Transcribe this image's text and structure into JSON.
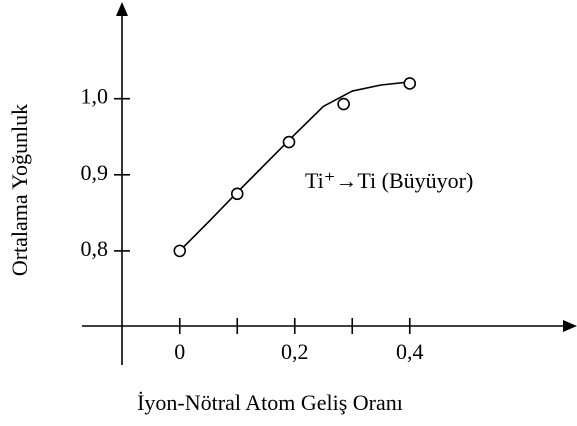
{
  "chart_data": {
    "type": "scatter",
    "xlabel": "İyon-Nötral Atom Geliş Oranı",
    "ylabel": "Ortalama Yoğunluk",
    "annotation": "Ti⁺→Ti (Büyüyor)",
    "x": [
      0,
      0.1,
      0.19,
      0.285,
      0.4
    ],
    "values": [
      0.8,
      0.875,
      0.943,
      0.993,
      1.02
    ],
    "fit": {
      "x": [
        0,
        0.05,
        0.1,
        0.15,
        0.2,
        0.25,
        0.3,
        0.35,
        0.4
      ],
      "values": [
        0.8,
        0.838,
        0.877,
        0.915,
        0.953,
        0.99,
        1.01,
        1.018,
        1.022
      ]
    },
    "color": "#000000",
    "xlim": [
      -0.17,
      0.67
    ],
    "ylim": [
      0.65,
      1.11
    ],
    "xticks": [
      0,
      {
        "value": 0.2,
        "label": "0,2"
      },
      {
        "value": 0.4,
        "label": "0,4"
      }
    ],
    "xminorticks": [
      0.1,
      0.3
    ],
    "yticks": [
      {
        "value": 0.8,
        "label": "0,8"
      },
      {
        "value": 0.9,
        "label": "0,9"
      },
      {
        "value": 1.0,
        "label": "1,0"
      }
    ]
  }
}
